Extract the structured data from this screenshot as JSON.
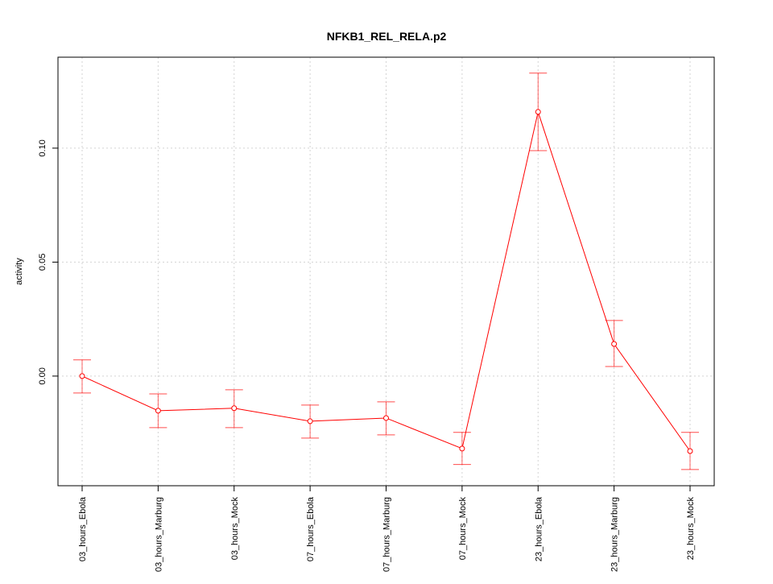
{
  "chart_data": {
    "type": "line",
    "title": "NFKB1_REL_RELA.p2",
    "xlabel": "",
    "ylabel": "activity",
    "categories": [
      "03_hours_Ebola",
      "03_hours_Marburg",
      "03_hours_Mock",
      "07_hours_Ebola",
      "07_hours_Marburg",
      "07_hours_Mock",
      "23_hours_Ebola",
      "23_hours_Marburg",
      "23_hours_Mock"
    ],
    "series": [
      {
        "values": [
          0.0,
          -0.0152,
          -0.0141,
          -0.0198,
          -0.0184,
          -0.0318,
          0.1159,
          0.0141,
          -0.0329
        ],
        "error_upper": [
          0.0071,
          -0.0078,
          -0.006,
          -0.0127,
          -0.0113,
          -0.0247,
          0.1329,
          0.0244,
          -0.0247
        ],
        "error_lower": [
          -0.0074,
          -0.0226,
          -0.0226,
          -0.0272,
          -0.0258,
          -0.0388,
          0.0989,
          0.0042,
          -0.041
        ],
        "color": "#ff0000"
      }
    ],
    "yticks": [
      0.0,
      0.05,
      0.1
    ],
    "ytick_labels": [
      "0.00",
      "0.05",
      "0.10"
    ],
    "ylim": [
      -0.0481,
      0.1399
    ],
    "grid": true
  }
}
